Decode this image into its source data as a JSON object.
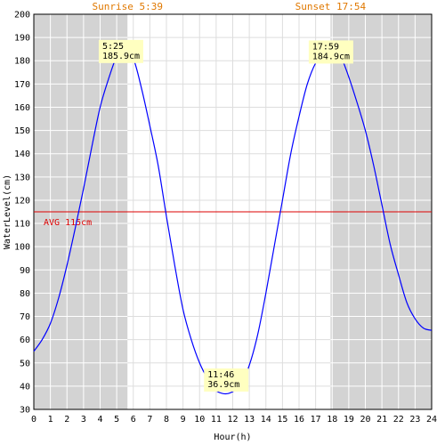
{
  "chart_data": {
    "type": "line",
    "xlabel": "Hour(h)",
    "ylabel": "WaterLevel(cm)",
    "xlim": [
      0,
      24
    ],
    "ylim": [
      30,
      200
    ],
    "xticks": [
      0,
      1,
      2,
      3,
      4,
      5,
      6,
      7,
      8,
      9,
      10,
      11,
      12,
      13,
      14,
      15,
      16,
      17,
      18,
      19,
      20,
      21,
      22,
      23,
      24
    ],
    "yticks": [
      30,
      40,
      50,
      60,
      70,
      80,
      90,
      100,
      110,
      120,
      130,
      140,
      150,
      160,
      170,
      180,
      190,
      200
    ],
    "grid": true,
    "night_shading": [
      [
        0,
        5.65
      ],
      [
        17.9,
        24
      ]
    ],
    "sunrise": {
      "label": "Sunrise 5:39",
      "hour": 5.65
    },
    "sunset": {
      "label": "Sunset 17:54",
      "hour": 17.9
    },
    "average": {
      "label": "AVG 115cm",
      "value": 115
    },
    "annotations": [
      {
        "time": "5:25",
        "level": "185.9cm",
        "x": 5.42,
        "y": 185.9
      },
      {
        "time": "11:46",
        "level": "36.9cm",
        "x": 11.77,
        "y": 36.9
      },
      {
        "time": "17:59",
        "level": "184.9cm",
        "x": 17.98,
        "y": 184.9
      }
    ],
    "series": [
      {
        "color": "#0000ff",
        "x": [
          0,
          0.5,
          1,
          1.5,
          2,
          2.5,
          3,
          3.5,
          4,
          4.5,
          5,
          5.42,
          6,
          6.5,
          7,
          7.5,
          8,
          8.5,
          9,
          9.5,
          10,
          10.5,
          11,
          11.77,
          12.5,
          13,
          13.5,
          14,
          14.5,
          15,
          15.5,
          16,
          16.5,
          17,
          17.5,
          17.98,
          18.5,
          19,
          19.5,
          20,
          20.5,
          21,
          21.5,
          22,
          22.5,
          23,
          23.5,
          24
        ],
        "y": [
          55,
          60,
          67,
          78,
          92,
          108,
          125,
          143,
          160,
          172,
          182,
          185.9,
          181,
          168,
          152,
          135,
          113,
          92,
          73,
          60,
          50,
          43,
          38,
          36.9,
          41,
          49,
          62,
          80,
          100,
          120,
          140,
          156,
          170,
          179,
          183.5,
          184.9,
          182,
          173,
          162,
          150,
          135,
          118,
          101,
          88,
          76,
          69,
          65,
          64
        ]
      }
    ]
  }
}
